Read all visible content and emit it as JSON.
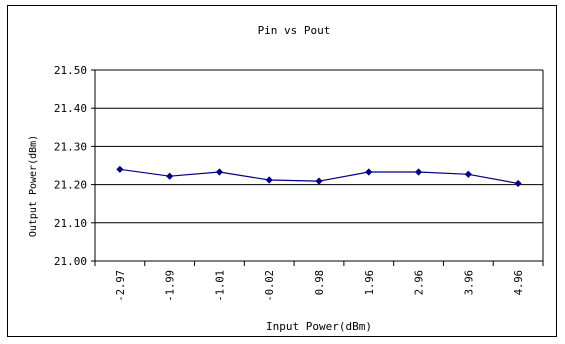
{
  "chart_data": {
    "type": "line",
    "title": "Pin vs Pout",
    "xlabel": "Input Power(dBm)",
    "ylabel": "Output Power(dBm)",
    "categories": [
      "-2.97",
      "-1.99",
      "-1.01",
      "-0.02",
      "0.98",
      "1.96",
      "2.96",
      "3.96",
      "4.96"
    ],
    "series": [
      {
        "values": [
          21.24,
          21.222,
          21.233,
          21.212,
          21.209,
          21.233,
          21.233,
          21.227,
          21.203
        ]
      }
    ],
    "ylim": [
      21.0,
      21.5
    ],
    "yticks": [
      "21.00",
      "21.10",
      "21.20",
      "21.30",
      "21.40",
      "21.50"
    ],
    "grid": true,
    "legend": "none",
    "colors": {
      "series": "#000080",
      "grid": "#000000",
      "frame": "#000000"
    }
  }
}
